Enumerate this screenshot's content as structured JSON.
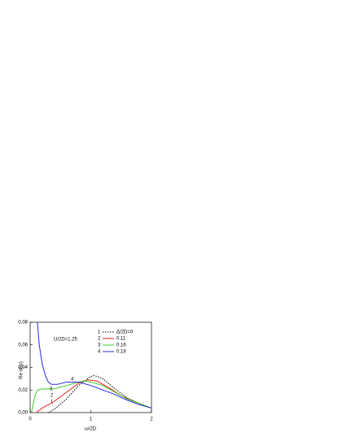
{
  "chart_data": {
    "type": "line",
    "xlabel": "ω/2D",
    "ylabel": "Re σ(ω)",
    "annotation": "U/2D=1.25",
    "xlim": [
      0,
      2
    ],
    "ylim": [
      0,
      0.08
    ],
    "xticks": [
      0,
      1,
      2
    ],
    "yticks": [
      {
        "value": 0,
        "label": "0,00"
      },
      {
        "value": 0.02,
        "label": "0,02"
      },
      {
        "value": 0.04,
        "label": "0,04"
      },
      {
        "value": 0.06,
        "label": "0,06"
      },
      {
        "value": 0.08,
        "label": "0,08"
      }
    ],
    "series": [
      {
        "label": "1",
        "name": "Δ/2D=0",
        "color": "#000000",
        "dash": "1.5,1.5",
        "x": [
          0.3,
          0.4,
          0.6,
          0.8,
          1.0,
          1.05,
          1.2,
          1.4,
          1.6,
          1.8,
          2.0
        ],
        "values": [
          0.0,
          0.003,
          0.012,
          0.024,
          0.032,
          0.033,
          0.03,
          0.021,
          0.013,
          0.008,
          0.004
        ]
      },
      {
        "label": "2",
        "name": "0.11",
        "color": "#e8201c",
        "dash": "none",
        "x": [
          0.1,
          0.2,
          0.4,
          0.6,
          0.8,
          0.95,
          1.1,
          1.3,
          1.5,
          1.7,
          2.0
        ],
        "values": [
          0.0,
          0.004,
          0.01,
          0.018,
          0.026,
          0.029,
          0.028,
          0.022,
          0.015,
          0.01,
          0.004
        ]
      },
      {
        "label": "3",
        "name": "0.16",
        "color": "#3ccc2c",
        "dash": "none",
        "x": [
          0.02,
          0.08,
          0.12,
          0.2,
          0.4,
          0.6,
          0.8,
          0.9,
          1.0,
          1.2,
          1.4,
          1.6,
          1.8,
          2.0
        ],
        "values": [
          0.0,
          0.015,
          0.02,
          0.021,
          0.021,
          0.024,
          0.027,
          0.028,
          0.027,
          0.024,
          0.018,
          0.012,
          0.008,
          0.004
        ]
      },
      {
        "label": "4",
        "name": "0.18",
        "color": "#2a2ae0",
        "dash": "none",
        "x": [
          0.12,
          0.15,
          0.2,
          0.25,
          0.3,
          0.35,
          0.45,
          0.6,
          0.8,
          1.0,
          1.2,
          1.4,
          1.6,
          1.8,
          2.0
        ],
        "values": [
          0.08,
          0.06,
          0.043,
          0.033,
          0.027,
          0.025,
          0.025,
          0.027,
          0.027,
          0.024,
          0.02,
          0.016,
          0.011,
          0.007,
          0.004
        ]
      }
    ]
  }
}
